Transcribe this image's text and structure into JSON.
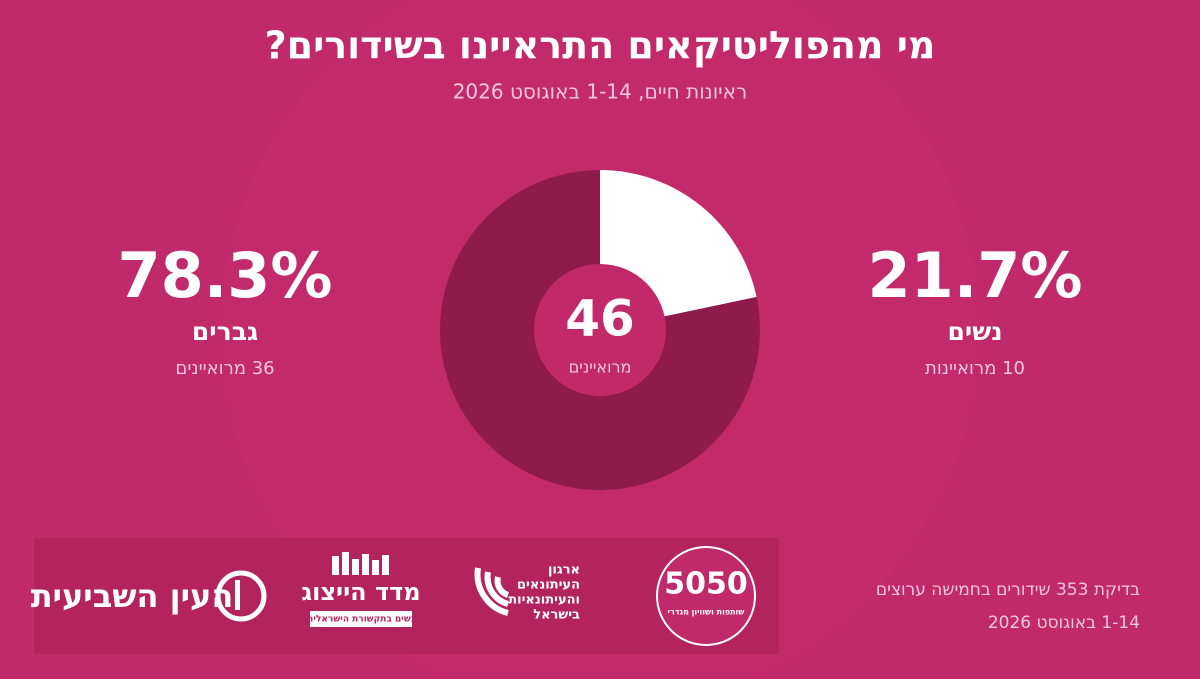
{
  "chart_data": {
    "type": "pie",
    "title": "מי מהפוליטיקאים התראיינו בשידורים?",
    "subtitle": "ראיונות חיים, 1-14 באוגוסט 2026",
    "categories": [
      "נשים",
      "גברים"
    ],
    "values": [
      21.7,
      78.3
    ],
    "value_labels": [
      "21.7%",
      "78.3%"
    ],
    "count_labels": [
      "10 מרואיינות",
      "36 מרואיינים"
    ],
    "colors": [
      "#ffffff",
      "#8e1b4c"
    ],
    "center_value": 46,
    "center_label": "מרואיינים"
  },
  "footer": {
    "lines": [
      "בדיקת 353 שידורים בחמישה ערוצים",
      "1-14 באוגוסט 2026"
    ]
  },
  "logos": {
    "fifty": "5050",
    "fifty_sub": "שותפות ושוויון מגדרי",
    "union": [
      "ארגון",
      "העיתונאים",
      "והעיתונאיות",
      "בישראל"
    ],
    "index": "מדד הייצוג",
    "index_sub": "נשים בתקשורת הישראלית",
    "eye": "העין השביעית"
  }
}
